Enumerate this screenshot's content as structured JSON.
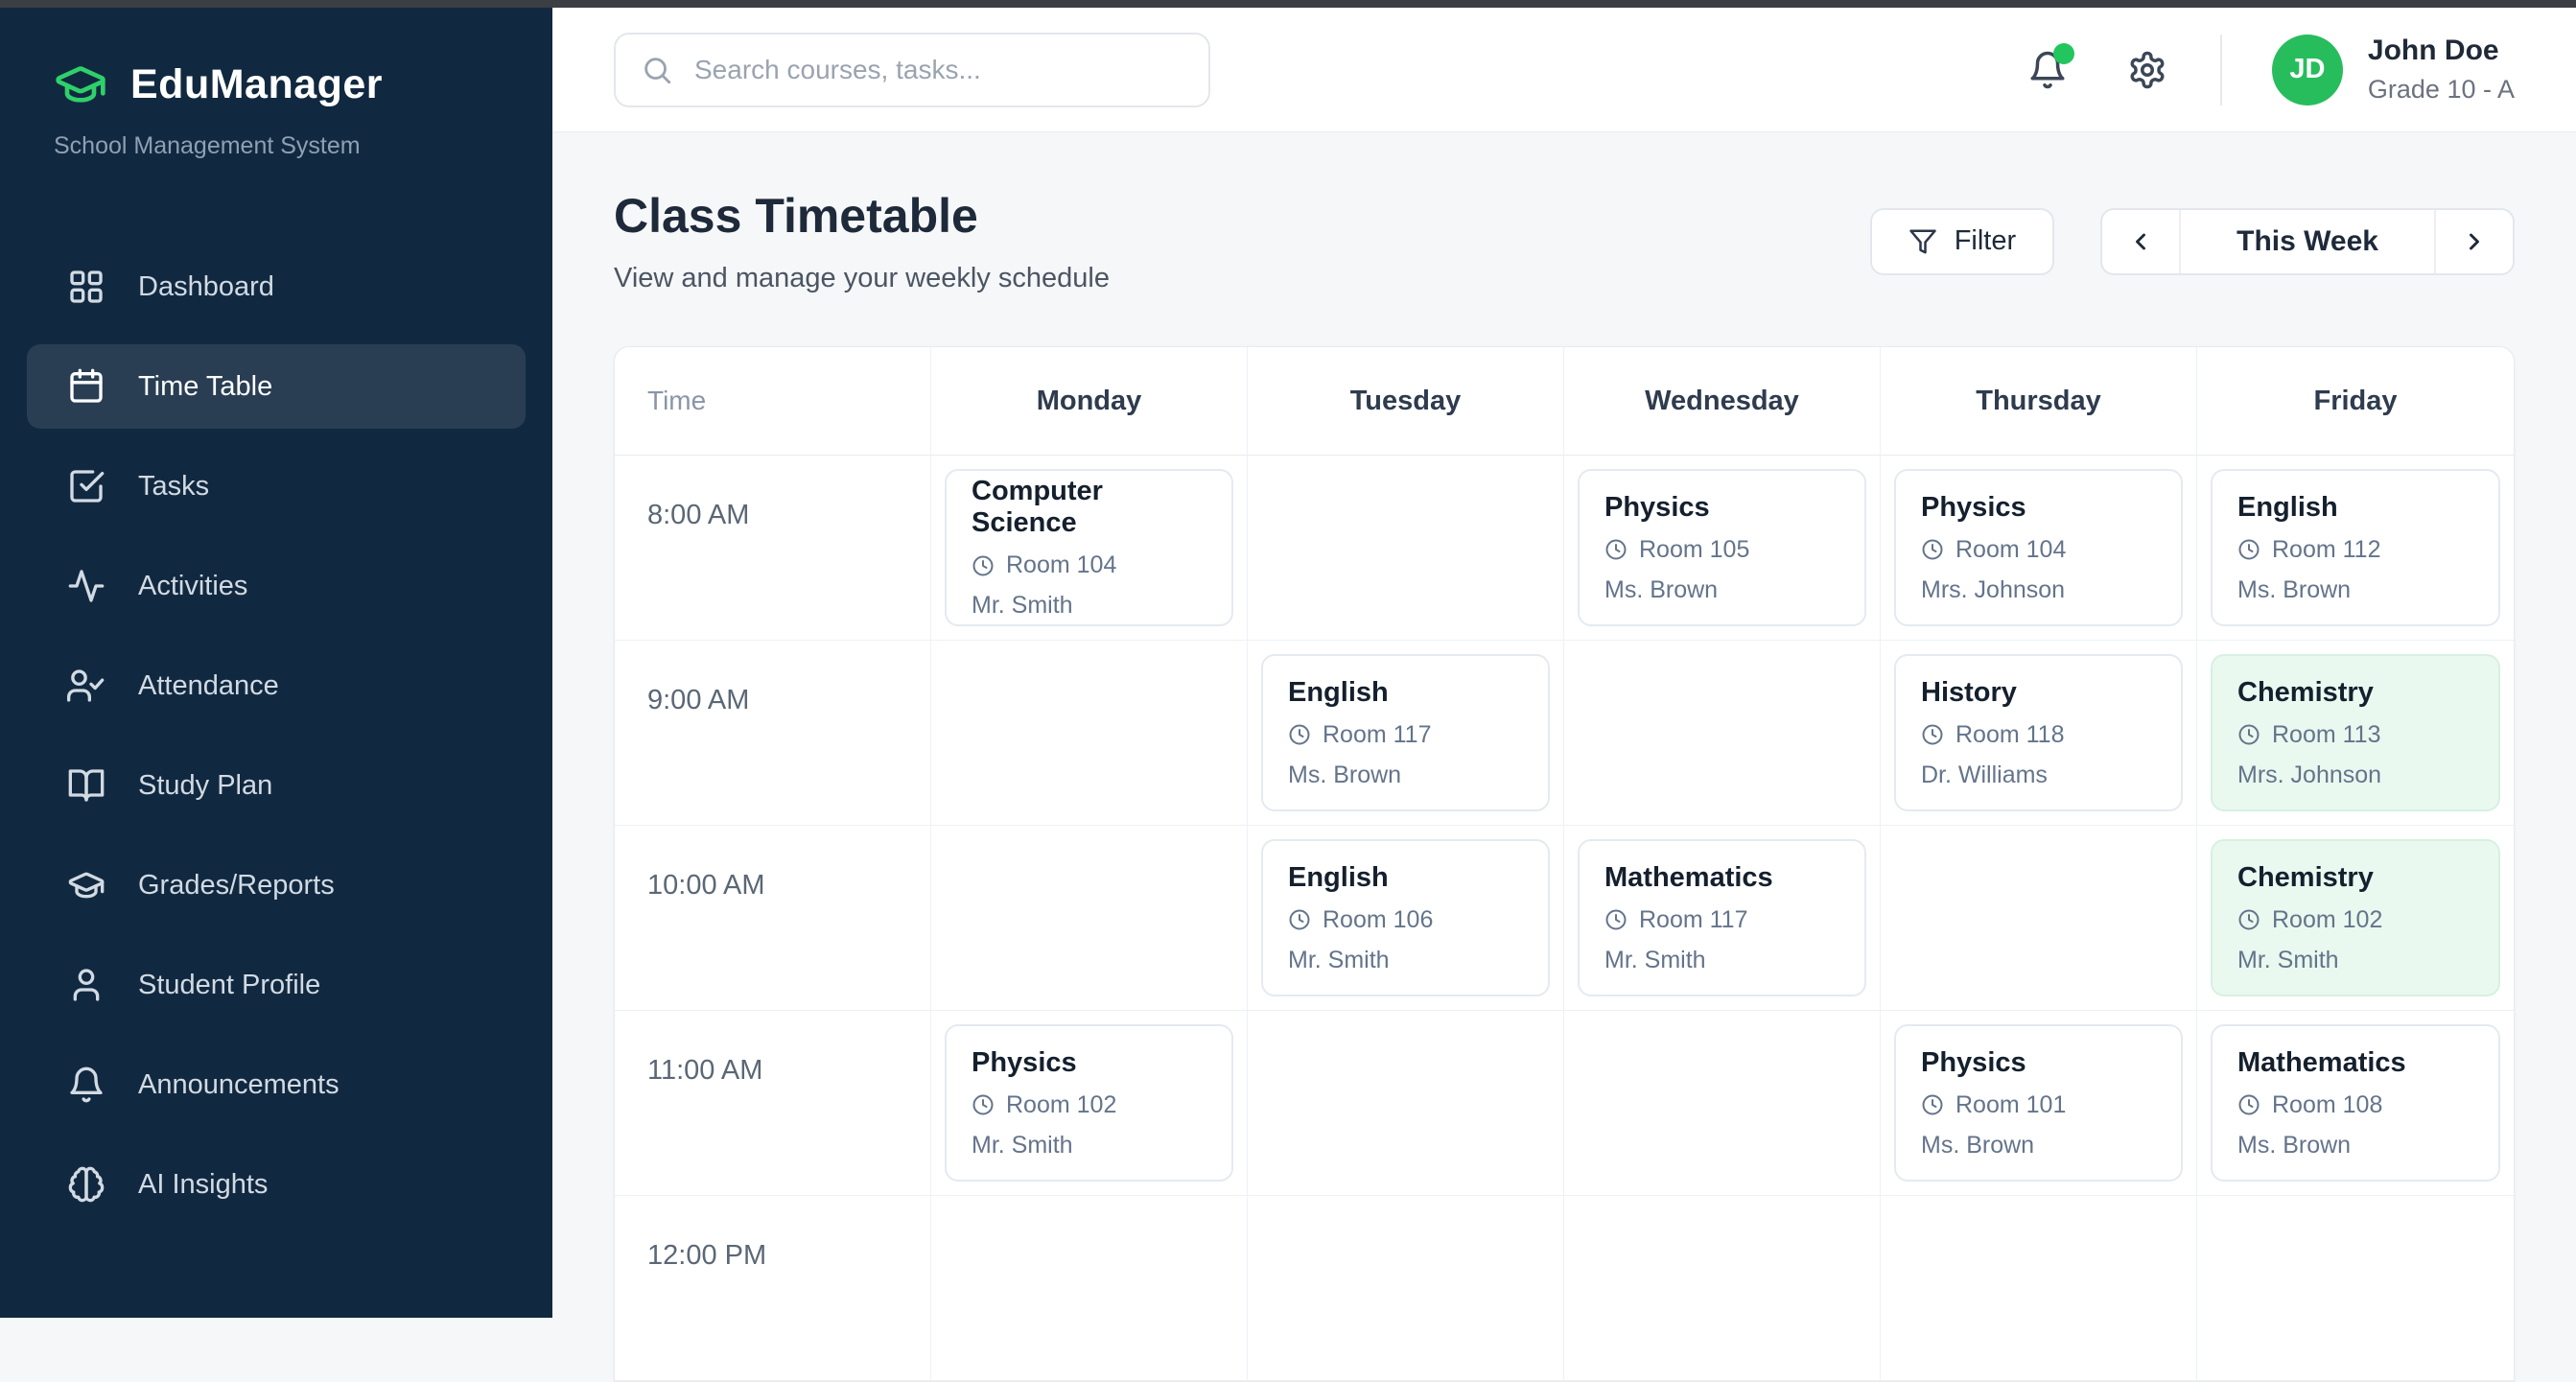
{
  "sidebar": {
    "logo_title": "EduManager",
    "logo_subtitle": "School Management System",
    "items": [
      {
        "label": "Dashboard",
        "icon": "dashboard-icon",
        "active": false
      },
      {
        "label": "Time Table",
        "icon": "calendar-icon",
        "active": true
      },
      {
        "label": "Tasks",
        "icon": "tasks-icon",
        "active": false
      },
      {
        "label": "Activities",
        "icon": "activity-icon",
        "active": false
      },
      {
        "label": "Attendance",
        "icon": "attendance-icon",
        "active": false
      },
      {
        "label": "Study Plan",
        "icon": "book-open-icon",
        "active": false
      },
      {
        "label": "Grades/Reports",
        "icon": "graduation-cap-icon",
        "active": false
      },
      {
        "label": "Student Profile",
        "icon": "user-icon",
        "active": false
      },
      {
        "label": "Announcements",
        "icon": "bell-icon",
        "active": false
      },
      {
        "label": "AI Insights",
        "icon": "brain-icon",
        "active": false
      }
    ]
  },
  "topbar": {
    "search_placeholder": "Search courses, tasks...",
    "has_notification": true,
    "user": {
      "initials": "JD",
      "name": "John Doe",
      "grade": "Grade 10 - A"
    }
  },
  "page": {
    "title": "Class Timetable",
    "subtitle": "View and manage your weekly schedule",
    "filter_label": "Filter",
    "week_label": "This Week"
  },
  "timetable": {
    "columns": [
      "Time",
      "Monday",
      "Tuesday",
      "Wednesday",
      "Thursday",
      "Friday"
    ],
    "rows": [
      {
        "time": "8:00 AM",
        "cells": [
          {
            "subject": "Computer Science",
            "room": "Room 104",
            "teacher": "Mr. Smith",
            "highlight": false
          },
          null,
          {
            "subject": "Physics",
            "room": "Room 105",
            "teacher": "Ms. Brown",
            "highlight": false
          },
          {
            "subject": "Physics",
            "room": "Room 104",
            "teacher": "Mrs. Johnson",
            "highlight": false
          },
          {
            "subject": "English",
            "room": "Room 112",
            "teacher": "Ms. Brown",
            "highlight": false
          }
        ]
      },
      {
        "time": "9:00 AM",
        "cells": [
          null,
          {
            "subject": "English",
            "room": "Room 117",
            "teacher": "Ms. Brown",
            "highlight": false
          },
          null,
          {
            "subject": "History",
            "room": "Room 118",
            "teacher": "Dr. Williams",
            "highlight": false
          },
          {
            "subject": "Chemistry",
            "room": "Room 113",
            "teacher": "Mrs. Johnson",
            "highlight": true
          }
        ]
      },
      {
        "time": "10:00 AM",
        "cells": [
          null,
          {
            "subject": "English",
            "room": "Room 106",
            "teacher": "Mr. Smith",
            "highlight": false
          },
          {
            "subject": "Mathematics",
            "room": "Room 117",
            "teacher": "Mr. Smith",
            "highlight": false
          },
          null,
          {
            "subject": "Chemistry",
            "room": "Room 102",
            "teacher": "Mr. Smith",
            "highlight": true
          }
        ]
      },
      {
        "time": "11:00 AM",
        "cells": [
          {
            "subject": "Physics",
            "room": "Room 102",
            "teacher": "Mr. Smith",
            "highlight": false
          },
          null,
          null,
          {
            "subject": "Physics",
            "room": "Room 101",
            "teacher": "Ms. Brown",
            "highlight": false
          },
          {
            "subject": "Mathematics",
            "room": "Room 108",
            "teacher": "Ms. Brown",
            "highlight": false
          }
        ]
      },
      {
        "time": "12:00 PM",
        "cells": [
          null,
          null,
          null,
          null,
          null
        ]
      }
    ]
  },
  "colors": {
    "accent_green": "#22c55e",
    "avatar_green": "#27bd5c",
    "sidebar_bg": "#112940",
    "highlight_card_bg": "#e9f9ef"
  }
}
